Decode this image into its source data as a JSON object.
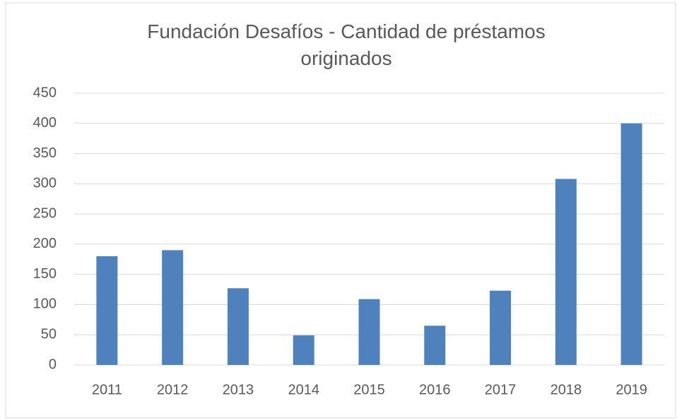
{
  "chart_data": {
    "type": "bar",
    "title": "Fundación Desafíos - Cantidad de préstamos originados",
    "categories": [
      "2011",
      "2012",
      "2013",
      "2014",
      "2015",
      "2016",
      "2017",
      "2018",
      "2019"
    ],
    "values": [
      180,
      190,
      127,
      49,
      109,
      65,
      123,
      308,
      400
    ],
    "color": "#4f81bd",
    "ylim": [
      0,
      450
    ],
    "yticks": [
      0,
      50,
      100,
      150,
      200,
      250,
      300,
      350,
      400,
      450
    ],
    "grid": true
  }
}
